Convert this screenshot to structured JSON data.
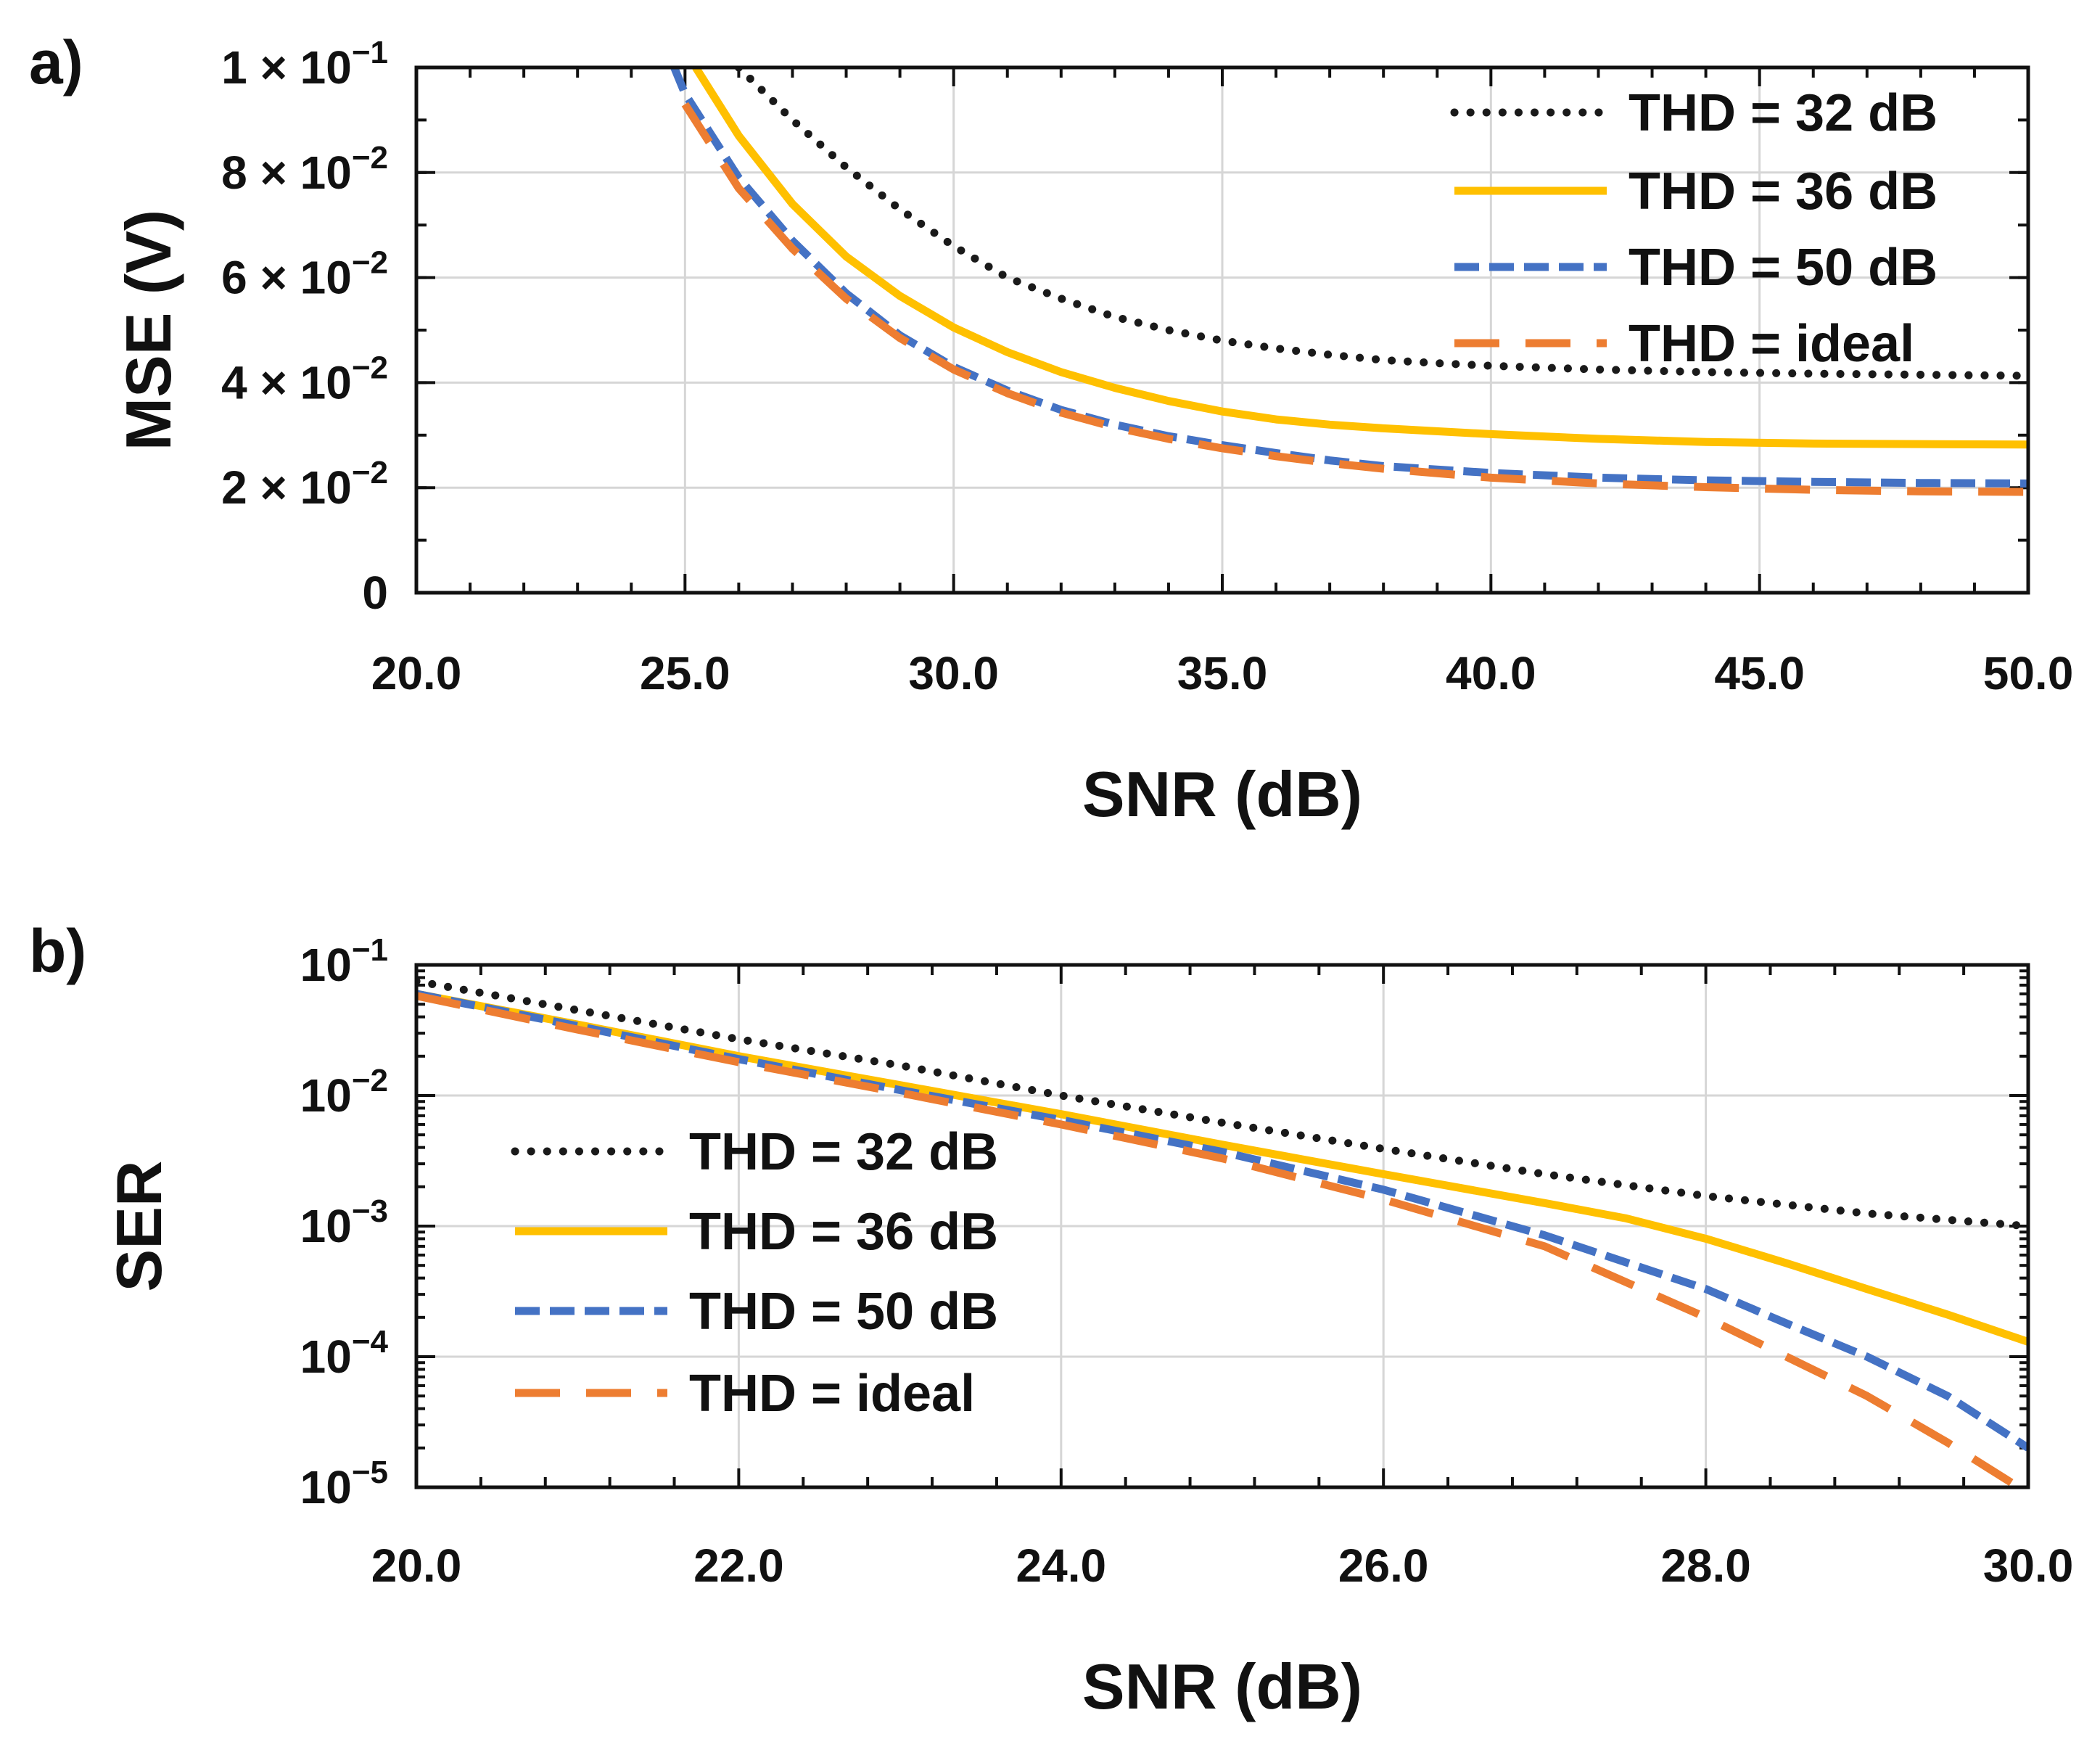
{
  "panels": [
    {
      "label": "a)"
    },
    {
      "label": "b)"
    }
  ],
  "series_styles": [
    {
      "name": "THD = 32 dB",
      "color": "#1a1a1a",
      "dash": "dotted"
    },
    {
      "name": "THD = 36 dB",
      "color": "#ffc000",
      "dash": "solid"
    },
    {
      "name": "THD = 50 dB",
      "color": "#4472c4",
      "dash": "dashed"
    },
    {
      "name": "THD = ideal",
      "color": "#ed7d31",
      "dash": "longdash"
    }
  ],
  "chart_data": [
    {
      "type": "line",
      "title": "",
      "xlabel": "SNR (dB)",
      "ylabel": "MSE (V)",
      "yscale": "linear",
      "xlim": [
        20,
        50
      ],
      "ylim": [
        0,
        0.1
      ],
      "grid": true,
      "legend_position": "top-right",
      "x_ticks": [
        20,
        25,
        30,
        35,
        40,
        45,
        50
      ],
      "x_tick_labels": [
        "20.0",
        "25.0",
        "30.0",
        "35.0",
        "40.0",
        "45.0",
        "50.0"
      ],
      "y_ticks": [
        0,
        0.02,
        0.04,
        0.06,
        0.08,
        0.1
      ],
      "y_tick_labels": [
        {
          "mant": "0",
          "exp": ""
        },
        {
          "mant": "2 × 10",
          "exp": "−2"
        },
        {
          "mant": "4 × 10",
          "exp": "−2"
        },
        {
          "mant": "6 × 10",
          "exp": "−2"
        },
        {
          "mant": "8 × 10",
          "exp": "−2"
        },
        {
          "mant": "1 × 10",
          "exp": "−1"
        }
      ],
      "series": [
        {
          "name": "THD = 32 dB",
          "x": [
            26,
            27,
            28,
            29,
            30,
            31,
            32,
            33,
            34,
            35,
            36,
            37,
            38,
            39,
            40,
            42,
            44,
            46,
            48,
            50
          ],
          "y": [
            0.1,
            0.09,
            0.081,
            0.073,
            0.066,
            0.06,
            0.056,
            0.0525,
            0.05,
            0.048,
            0.0465,
            0.0453,
            0.0443,
            0.0437,
            0.0432,
            0.0425,
            0.042,
            0.0417,
            0.0415,
            0.0413
          ]
        },
        {
          "name": "THD = 36 dB",
          "x": [
            25.2,
            26,
            27,
            28,
            29,
            30,
            31,
            32,
            33,
            34,
            35,
            36,
            37,
            38,
            40,
            42,
            44,
            46,
            48,
            50
          ],
          "y": [
            0.1,
            0.087,
            0.074,
            0.064,
            0.0565,
            0.0505,
            0.0458,
            0.042,
            0.039,
            0.0365,
            0.0345,
            0.033,
            0.032,
            0.0313,
            0.0302,
            0.0293,
            0.0287,
            0.0284,
            0.0283,
            0.0282
          ]
        },
        {
          "name": "THD = 50 dB",
          "x": [
            24.8,
            25,
            26,
            27,
            28,
            29,
            30,
            31,
            32,
            33,
            34,
            35,
            36,
            37,
            38,
            40,
            42,
            44,
            46,
            48,
            50
          ],
          "y": [
            0.1,
            0.095,
            0.079,
            0.067,
            0.057,
            0.049,
            0.043,
            0.0385,
            0.0348,
            0.032,
            0.0298,
            0.0281,
            0.0266,
            0.0252,
            0.0241,
            0.0228,
            0.0219,
            0.0214,
            0.0211,
            0.0209,
            0.0208
          ]
        },
        {
          "name": "THD = ideal",
          "x": [
            25,
            26,
            27,
            28,
            29,
            30,
            31,
            32,
            33,
            34,
            35,
            36,
            37,
            38,
            40,
            42,
            44,
            46,
            48,
            50
          ],
          "y": [
            0.093,
            0.077,
            0.0655,
            0.056,
            0.0485,
            0.0425,
            0.038,
            0.0343,
            0.0315,
            0.0293,
            0.0275,
            0.026,
            0.0247,
            0.0236,
            0.0219,
            0.0208,
            0.0201,
            0.0196,
            0.0193,
            0.0192
          ]
        }
      ]
    },
    {
      "type": "line",
      "title": "",
      "xlabel": "SNR (dB)",
      "ylabel": "SER",
      "yscale": "log",
      "xlim": [
        20,
        30
      ],
      "ylim": [
        1e-05,
        0.1
      ],
      "grid": true,
      "legend_position": "center-left",
      "x_ticks": [
        20,
        22,
        24,
        26,
        28,
        30
      ],
      "x_tick_labels": [
        "20.0",
        "22.0",
        "24.0",
        "26.0",
        "28.0",
        "30.0"
      ],
      "y_ticks": [
        0.1,
        0.01,
        0.001,
        0.0001,
        1e-05
      ],
      "y_tick_labels": [
        {
          "mant": "10",
          "exp": "−1"
        },
        {
          "mant": "10",
          "exp": "−2"
        },
        {
          "mant": "10",
          "exp": "−3"
        },
        {
          "mant": "10",
          "exp": "−4"
        },
        {
          "mant": "10",
          "exp": "−5"
        }
      ],
      "series": [
        {
          "name": "THD = 32 dB",
          "x": [
            20,
            21,
            22,
            23,
            24,
            25,
            26,
            27,
            28,
            29,
            30
          ],
          "y": [
            0.075,
            0.045,
            0.027,
            0.017,
            0.01,
            0.0062,
            0.0039,
            0.0025,
            0.0017,
            0.00125,
            0.001
          ]
        },
        {
          "name": "THD = 36 dB",
          "x": [
            20,
            21,
            22,
            23,
            24,
            25,
            26,
            27,
            27.5,
            28,
            28.5,
            29,
            29.5,
            30
          ],
          "y": [
            0.06,
            0.035,
            0.02,
            0.012,
            0.0072,
            0.0042,
            0.0025,
            0.0015,
            0.00115,
            0.0008,
            0.00052,
            0.00033,
            0.00021,
            0.00013
          ]
        },
        {
          "name": "THD = 50 dB",
          "x": [
            20,
            21,
            22,
            23,
            24,
            25,
            26,
            27,
            28,
            28.5,
            29,
            29.5,
            30
          ],
          "y": [
            0.06,
            0.034,
            0.019,
            0.011,
            0.0065,
            0.0037,
            0.0019,
            0.00085,
            0.00033,
            0.00018,
            0.0001,
            5e-05,
            2e-05
          ]
        },
        {
          "name": "THD = ideal",
          "x": [
            20,
            21,
            22,
            23,
            24,
            25,
            26,
            27,
            28,
            28.5,
            29,
            29.5,
            30
          ],
          "y": [
            0.058,
            0.032,
            0.018,
            0.0105,
            0.006,
            0.0033,
            0.0016,
            0.0007,
            0.0002,
            0.0001,
            5e-05,
            2.2e-05,
            9e-06
          ]
        }
      ]
    }
  ]
}
